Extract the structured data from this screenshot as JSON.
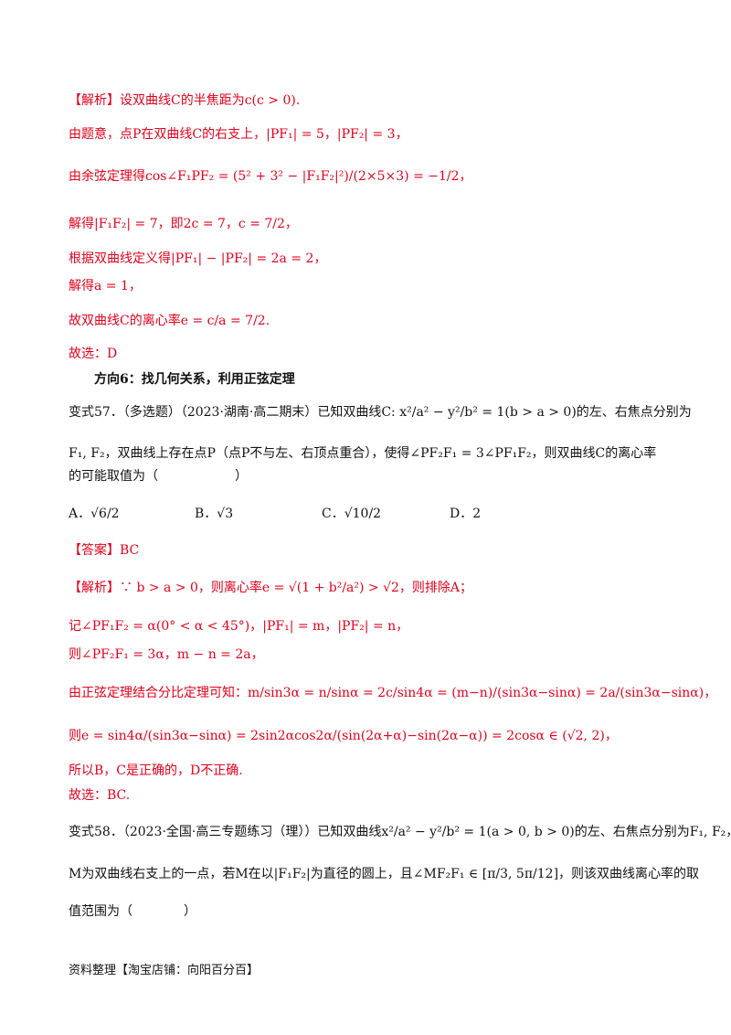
{
  "lines": [
    "【解析】设双曲线C的半焦距为c(c > 0).",
    "由题意，点P在双曲线C的右支上，|PF₁| = 5，|PF₂| = 3，",
    "由余弦定理得cos∠F₁PF₂ = (5² + 3² − |F₁F₂|²)/(2×5×3) = −1/2，",
    "解得|F₁F₂| = 7，即2c = 7，c = 7/2，",
    "根据双曲线定义得|PF₁| − |PF₂| = 2a = 2，",
    "解得a = 1，",
    "故双曲线C的离心率e = c/a = 7/2.",
    "故选：D",
    "方向6：找几何关系，利用正弦定理",
    "变式57．（多选题）（2023·湖南·高二期末）已知双曲线C: x²/a² − y²/b² = 1(b > a > 0)的左、右焦点分别为",
    "F₁, F₂，双曲线上存在点P（点P不与左、右顶点重合），使得∠PF₂F₁ = 3∠PF₁F₂，则双曲线C的离心率",
    "的可能取值为（　　　　　　）",
    "【答案】BC",
    "【解析】∵ b > a > 0，则离心率e = √(1 + b²/a²) > √2，则排除A；",
    "记∠PF₁F₂ = α(0° < α < 45°)，|PF₁| = m，|PF₂| = n，",
    "则∠PF₂F₁ = 3α，m − n = 2a，",
    "由正弦定理结合分比定理可知：m/sin3α = n/sinα = 2c/sin4α = (m−n)/(sin3α−sinα) = 2a/(sin3α−sinα)，",
    "则e = sin4α/(sin3α−sinα) = 2sin2αcos2α/(sin(2α+α)−sin(2α−α)) = 2cosα ∈ (√2, 2)，",
    "所以B，C是正确的，D不正确.",
    "故选：BC.",
    "变式58．（2023·全国·高三专题练习（理））已知双曲线x²/a² − y²/b² = 1(a > 0, b > 0)的左、右焦点分别为F₁, F₂，",
    "M为双曲线右支上的一点，若M在以|F₁F₂|为直径的圆上，且∠MF₂F₁ ∈ [π/3, 5π/12]，则该双曲线离心率的取",
    "值范围为（　　　　）"
  ],
  "options": {
    "a": "A．√6/2",
    "b": "B．√3",
    "c": "C．√10/2",
    "d": "D．2"
  },
  "footer": "资料整理【淘宝店铺：向阳百分百】"
}
